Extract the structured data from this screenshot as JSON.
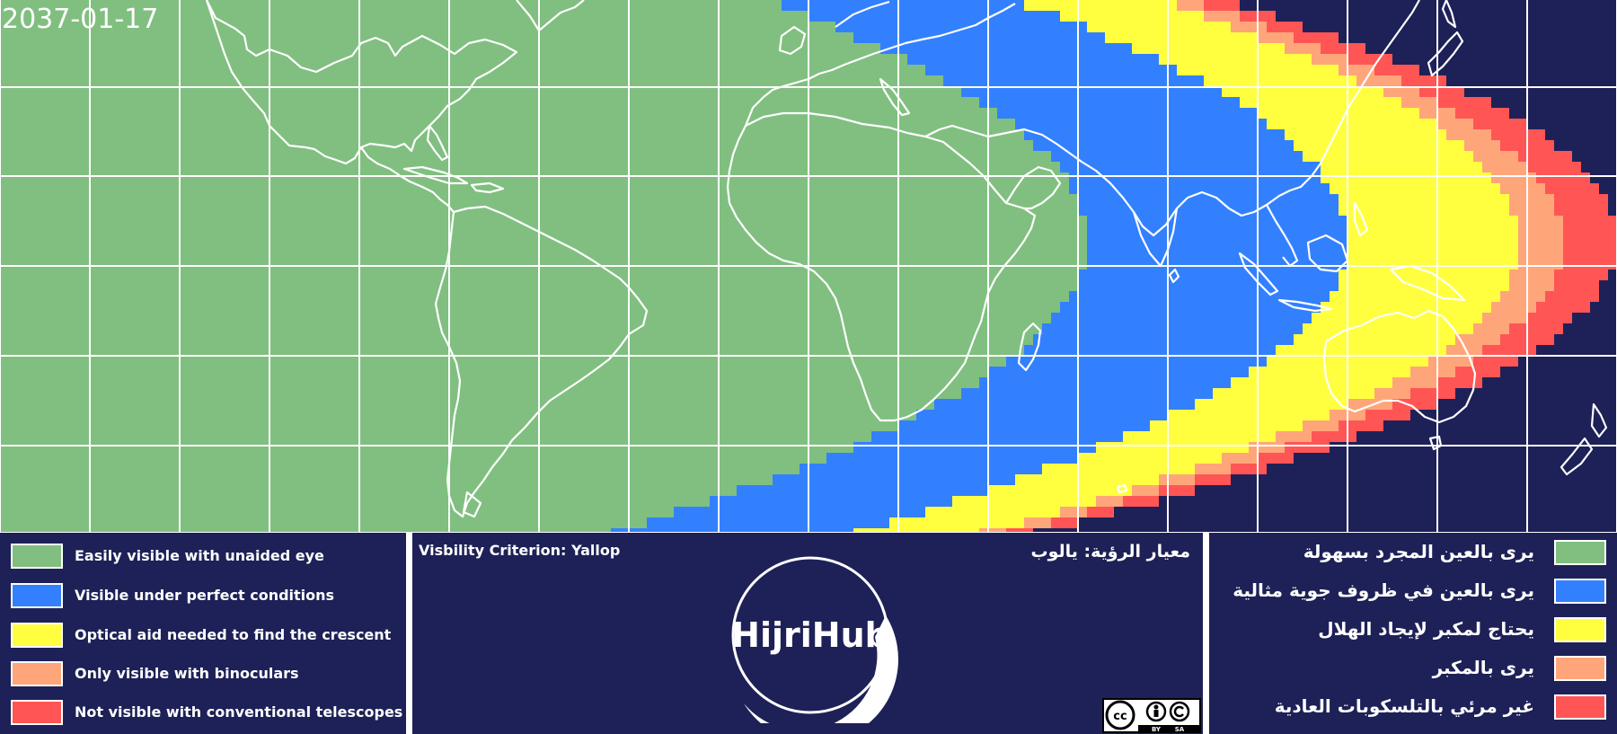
{
  "date": "2037-01-17",
  "colors": {
    "background": "#1e2157",
    "grid": "#ffffff",
    "coastline": "#ffffff",
    "easily_visible": "#80bf80",
    "perfect_conditions": "#3380ff",
    "optical_aid": "#ffff40",
    "binoculars": "#ffa57a",
    "not_visible": "#ff5555"
  },
  "legend_en": [
    {
      "label": "Easily visible with unaided eye",
      "color": "#80bf80"
    },
    {
      "label": "Visible under perfect conditions",
      "color": "#3380ff"
    },
    {
      "label": "Optical aid needed to find the crescent",
      "color": "#ffff40"
    },
    {
      "label": "Only visible with binoculars",
      "color": "#ffa57a"
    },
    {
      "label": "Not visible with conventional telescopes",
      "color": "#ff5555"
    }
  ],
  "legend_ar": [
    {
      "label": "يرى بالعين المجرد بسهولة",
      "color": "#80bf80"
    },
    {
      "label": "يرى بالعين في ظروف جوية مثالية",
      "color": "#3380ff"
    },
    {
      "label": "يحتاج لمكبر لإيجاد الهلال",
      "color": "#ffff40"
    },
    {
      "label": "يرى بالمكبر",
      "color": "#ffa57a"
    },
    {
      "label": "غير مرئي بالتلسكوبات العادية",
      "color": "#ff5555"
    }
  ],
  "criterion_en": "Visbility Criterion: Yallop",
  "criterion_ar": "معيار الرؤية: يالوب",
  "logo_text": "HijriHub",
  "license": {
    "cc": "cc",
    "by": "BY",
    "sa": "SA"
  }
}
